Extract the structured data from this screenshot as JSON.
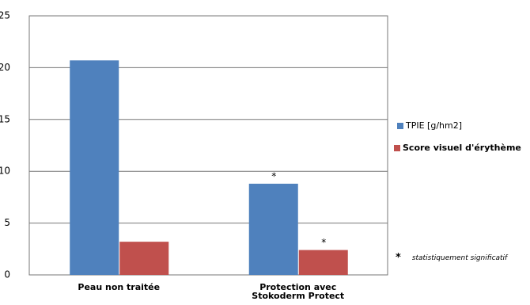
{
  "chart_data": {
    "type": "bar",
    "categories": [
      "Peau non traitée",
      "Protection avec Stokoderm Protect"
    ],
    "series": [
      {
        "name": "TPIE [g/hm2]",
        "color": "#4f81bd",
        "values": [
          20.7,
          8.8
        ],
        "significance": [
          null,
          "*"
        ]
      },
      {
        "name": "Score visuel d'érythème",
        "color": "#c0504d",
        "values": [
          3.2,
          2.4
        ],
        "significance": [
          null,
          "*"
        ]
      }
    ],
    "ylim": [
      0,
      25
    ],
    "yticks": [
      0,
      5,
      10,
      15,
      20,
      25
    ],
    "grid": true,
    "footnote": {
      "symbol": "*",
      "text": "statistiquement significatif"
    }
  }
}
